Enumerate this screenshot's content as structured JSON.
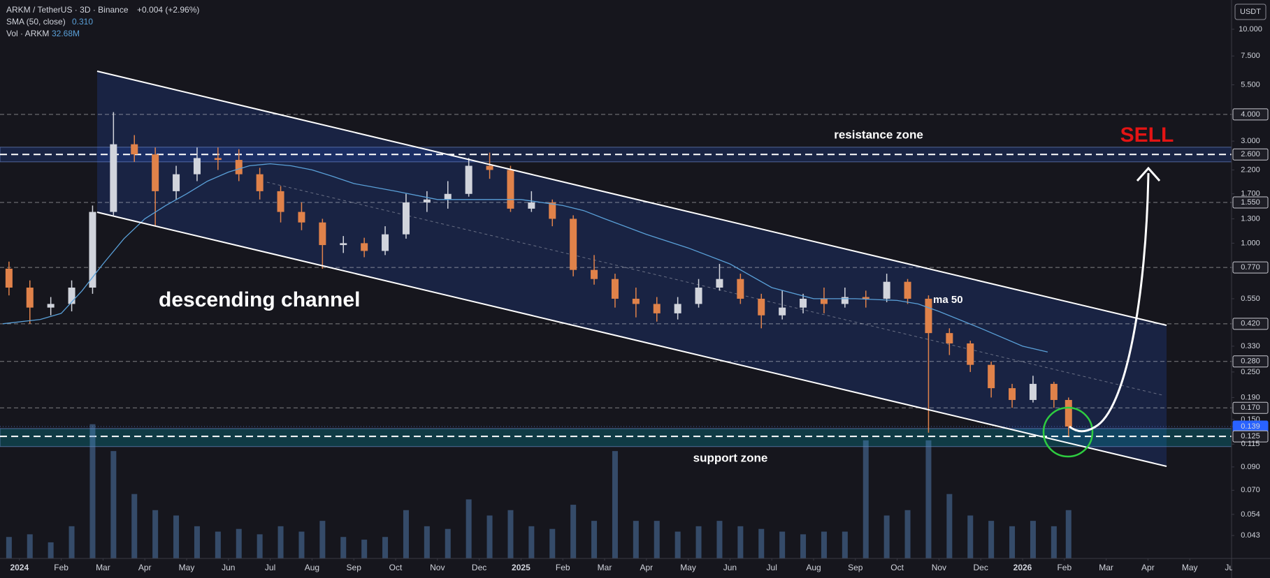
{
  "chart_data": {
    "type": "candlestick",
    "title": "ARKM / TetherUS · 3D · Binance",
    "change": "+0.004 (+2.96%)",
    "indicators": [
      {
        "label": "SMA (50, close)",
        "value_label": "0.310"
      },
      {
        "label": "Vol · ARKM",
        "value_label": "32.68M"
      }
    ],
    "currency": "USDT",
    "log_scale": true,
    "up_color": "#d1d4dc",
    "down_color": "#e0824a",
    "volume_color": "#5a8cc8",
    "x": [
      -0.25,
      0.25,
      0.75,
      1.25,
      1.75,
      2.25,
      2.75,
      3.25,
      3.75,
      4.25,
      4.75,
      5.25,
      5.75,
      6.25,
      6.75,
      7.25,
      7.75,
      8.25,
      8.75,
      9.25,
      9.75,
      10.25,
      10.75,
      11.25,
      11.75,
      12.25,
      12.75,
      13.25,
      13.75,
      14.25,
      14.75,
      15.25,
      15.75,
      16.25,
      16.75,
      17.25,
      17.75,
      18.25,
      18.75,
      19.25,
      19.75,
      20.25,
      20.75,
      21.25,
      21.75,
      22.25,
      22.75,
      23.25,
      23.75,
      24.25,
      24.75,
      25.1
    ],
    "open": [
      0.76,
      0.62,
      0.5,
      0.52,
      0.62,
      1.4,
      2.9,
      2.6,
      1.75,
      2.1,
      2.5,
      2.45,
      2.1,
      1.75,
      1.4,
      1.25,
      0.98,
      1.0,
      0.92,
      1.1,
      1.55,
      1.6,
      1.7,
      2.3,
      2.2,
      1.45,
      1.55,
      1.3,
      0.75,
      0.68,
      0.55,
      0.52,
      0.47,
      0.52,
      0.62,
      0.68,
      0.55,
      0.46,
      0.5,
      0.55,
      0.52,
      0.56,
      0.55,
      0.66,
      0.55,
      0.38,
      0.34,
      0.27,
      0.21,
      0.185,
      0.22,
      0.185
    ],
    "high": [
      0.82,
      0.67,
      0.56,
      0.67,
      1.5,
      4.1,
      3.2,
      2.8,
      2.3,
      2.8,
      2.8,
      2.75,
      2.25,
      1.85,
      1.55,
      1.3,
      1.08,
      1.06,
      1.2,
      1.7,
      1.75,
      1.95,
      2.5,
      2.65,
      2.3,
      1.75,
      1.6,
      1.35,
      0.88,
      0.72,
      0.62,
      0.56,
      0.56,
      0.68,
      0.8,
      0.72,
      0.58,
      0.6,
      0.58,
      0.62,
      0.62,
      0.6,
      0.72,
      0.68,
      0.57,
      0.4,
      0.35,
      0.28,
      0.22,
      0.24,
      0.225,
      0.19
    ],
    "low": [
      0.57,
      0.42,
      0.46,
      0.48,
      0.58,
      1.35,
      2.4,
      1.2,
      1.6,
      1.95,
      2.2,
      1.95,
      1.6,
      1.25,
      1.15,
      0.76,
      0.9,
      0.86,
      0.88,
      1.05,
      1.4,
      1.45,
      1.65,
      2.0,
      1.4,
      1.4,
      1.2,
      0.7,
      0.64,
      0.5,
      0.45,
      0.43,
      0.44,
      0.5,
      0.6,
      0.52,
      0.4,
      0.44,
      0.47,
      0.47,
      0.5,
      0.5,
      0.53,
      0.52,
      0.13,
      0.3,
      0.25,
      0.19,
      0.17,
      0.18,
      0.17,
      0.125
    ],
    "close": [
      0.62,
      0.5,
      0.52,
      0.62,
      1.4,
      2.9,
      2.6,
      1.75,
      2.1,
      2.5,
      2.45,
      2.1,
      1.75,
      1.4,
      1.25,
      0.98,
      1.0,
      0.92,
      1.1,
      1.55,
      1.6,
      1.7,
      2.3,
      2.2,
      1.45,
      1.55,
      1.3,
      0.75,
      0.68,
      0.55,
      0.52,
      0.47,
      0.52,
      0.62,
      0.68,
      0.55,
      0.46,
      0.5,
      0.55,
      0.52,
      0.56,
      0.55,
      0.66,
      0.55,
      0.38,
      0.34,
      0.27,
      0.21,
      0.185,
      0.22,
      0.185,
      0.139
    ],
    "volume": [
      40,
      45,
      30,
      60,
      250,
      200,
      120,
      90,
      80,
      60,
      50,
      55,
      45,
      60,
      50,
      70,
      40,
      35,
      40,
      90,
      60,
      55,
      110,
      80,
      90,
      60,
      55,
      100,
      70,
      200,
      70,
      70,
      50,
      60,
      70,
      60,
      55,
      50,
      45,
      50,
      50,
      220,
      80,
      90,
      220,
      120,
      80,
      70,
      60,
      70,
      60,
      90
    ],
    "vlim": [
      0,
      260
    ],
    "sma": {
      "color": "#5aa0d8",
      "x": [
        -0.4,
        0.5,
        1,
        1.5,
        2,
        2.5,
        3,
        3.5,
        4,
        4.5,
        5,
        5.5,
        6,
        6.5,
        7,
        7.5,
        8,
        9,
        10,
        11,
        12,
        13,
        13.5,
        14,
        15,
        16,
        17,
        18,
        19,
        20,
        21,
        21.5,
        22,
        23,
        24,
        24.6
      ],
      "values": [
        0.42,
        0.44,
        0.47,
        0.6,
        0.8,
        1.05,
        1.3,
        1.5,
        1.7,
        1.95,
        2.15,
        2.3,
        2.35,
        2.3,
        2.2,
        2.05,
        1.9,
        1.75,
        1.6,
        1.6,
        1.6,
        1.5,
        1.42,
        1.3,
        1.1,
        0.95,
        0.8,
        0.62,
        0.55,
        0.55,
        0.54,
        0.52,
        0.48,
        0.4,
        0.33,
        0.31
      ]
    },
    "ylim": [
      0.0336,
      13.7
    ],
    "yticks": [
      {
        "value": 10,
        "label": "10.000"
      },
      {
        "value": 7.5,
        "label": "7.500"
      },
      {
        "value": 5.5,
        "label": "5.500"
      },
      {
        "value": 4,
        "label": "4.000",
        "style": "level"
      },
      {
        "value": 3,
        "label": "3.000"
      },
      {
        "value": 2.6,
        "label": "2.600",
        "style": "zone"
      },
      {
        "value": 2.2,
        "label": "2.200"
      },
      {
        "value": 1.7,
        "label": "1.700"
      },
      {
        "value": 1.55,
        "label": "1.550",
        "style": "level"
      },
      {
        "value": 1.3,
        "label": "1.300"
      },
      {
        "value": 1,
        "label": "1.000"
      },
      {
        "value": 0.77,
        "label": "0.770",
        "style": "level"
      },
      {
        "value": 0.55,
        "label": "0.550"
      },
      {
        "value": 0.42,
        "label": "0.420",
        "style": "level"
      },
      {
        "value": 0.33,
        "label": "0.330"
      },
      {
        "value": 0.28,
        "label": "0.280",
        "style": "level"
      },
      {
        "value": 0.25,
        "label": "0.250"
      },
      {
        "value": 0.19,
        "label": "0.190"
      },
      {
        "value": 0.17,
        "label": "0.170",
        "style": "level"
      },
      {
        "value": 0.15,
        "label": "0.150"
      },
      {
        "value": 0.139,
        "label": "0.139",
        "style": "price"
      },
      {
        "value": 0.125,
        "label": "0.125",
        "style": "zone"
      },
      {
        "value": 0.115,
        "label": "0.115"
      },
      {
        "value": 0.09,
        "label": "0.090"
      },
      {
        "value": 0.07,
        "label": "0.070"
      },
      {
        "value": 0.054,
        "label": "0.054"
      },
      {
        "value": 0.043,
        "label": "0.043"
      }
    ],
    "xlim": [
      -0.465,
      29.0
    ],
    "xticks": [
      {
        "value": 0,
        "label": "2024",
        "year": true
      },
      {
        "value": 1,
        "label": "Feb"
      },
      {
        "value": 2,
        "label": "Mar"
      },
      {
        "value": 3,
        "label": "Apr"
      },
      {
        "value": 4,
        "label": "May"
      },
      {
        "value": 5,
        "label": "Jun"
      },
      {
        "value": 6,
        "label": "Jul"
      },
      {
        "value": 7,
        "label": "Aug"
      },
      {
        "value": 8,
        "label": "Sep"
      },
      {
        "value": 9,
        "label": "Oct"
      },
      {
        "value": 10,
        "label": "Nov"
      },
      {
        "value": 11,
        "label": "Dec"
      },
      {
        "value": 12,
        "label": "2025",
        "year": true
      },
      {
        "value": 13,
        "label": "Feb"
      },
      {
        "value": 14,
        "label": "Mar"
      },
      {
        "value": 15,
        "label": "Apr"
      },
      {
        "value": 16,
        "label": "May"
      },
      {
        "value": 17,
        "label": "Jun"
      },
      {
        "value": 18,
        "label": "Jul"
      },
      {
        "value": 19,
        "label": "Aug"
      },
      {
        "value": 20,
        "label": "Sep"
      },
      {
        "value": 21,
        "label": "Oct"
      },
      {
        "value": 22,
        "label": "Nov"
      },
      {
        "value": 23,
        "label": "Dec"
      },
      {
        "value": 24,
        "label": "2026",
        "year": true
      },
      {
        "value": 25,
        "label": "Feb"
      },
      {
        "value": 26,
        "label": "Mar"
      },
      {
        "value": 27,
        "label": "Apr"
      },
      {
        "value": 28,
        "label": "May"
      },
      {
        "value": 29,
        "label": "Jun"
      }
    ],
    "zones": [
      {
        "label": "resistance zone",
        "range": [
          2.4,
          2.81
        ]
      },
      {
        "label": "support zone",
        "range": [
          0.112,
          0.136
        ]
      }
    ],
    "channel_label": "descending channel",
    "ma_label": "ma 50",
    "signal": "SELL"
  }
}
